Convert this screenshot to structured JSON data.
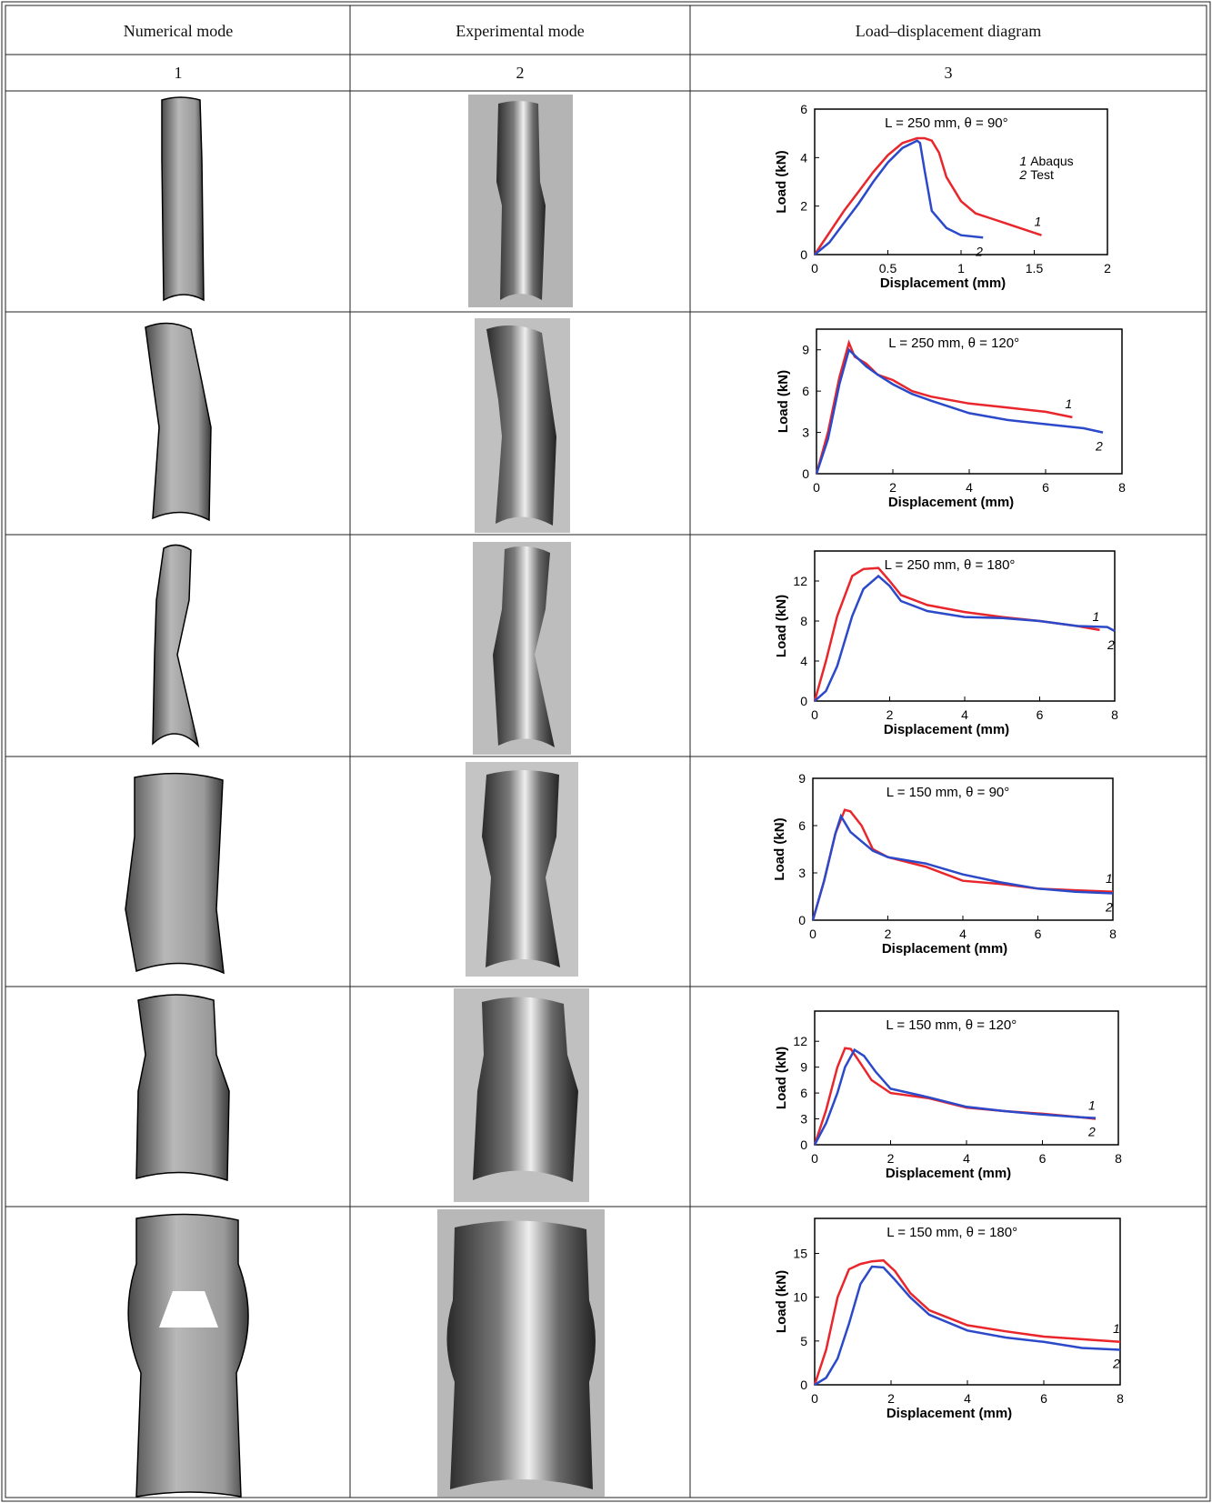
{
  "table": {
    "header": [
      "Numerical mode",
      "Experimental mode",
      "Load–displacement diagram"
    ],
    "column_numbers": [
      "1",
      "2",
      "3"
    ]
  },
  "chart_data": [
    {
      "type": "line",
      "title": "L = 250 mm, θ = 90°",
      "xlabel": "Displacement (mm)",
      "ylabel": "Load (kN)",
      "xlim": [
        0,
        2
      ],
      "ylim": [
        0,
        6
      ],
      "xticks": [
        0,
        0.5,
        1,
        1.5,
        2
      ],
      "yticks": [
        0,
        2,
        4,
        6
      ],
      "legend": [
        {
          "label": "1",
          "text": "Abaqus"
        },
        {
          "label": "2",
          "text": "Test"
        }
      ],
      "series": [
        {
          "label": "1",
          "color": "#e8262b",
          "x": [
            0,
            0.1,
            0.2,
            0.3,
            0.4,
            0.5,
            0.6,
            0.7,
            0.75,
            0.8,
            0.85,
            0.9,
            1.0,
            1.1,
            1.2,
            1.3,
            1.4,
            1.55
          ],
          "values": [
            0,
            0.9,
            1.8,
            2.6,
            3.4,
            4.1,
            4.6,
            4.8,
            4.8,
            4.7,
            4.2,
            3.2,
            2.2,
            1.7,
            1.5,
            1.3,
            1.1,
            0.8
          ]
        },
        {
          "label": "2",
          "color": "#2b49c8",
          "x": [
            0,
            0.1,
            0.2,
            0.3,
            0.4,
            0.5,
            0.6,
            0.7,
            0.72,
            0.75,
            0.8,
            0.9,
            1.0,
            1.15
          ],
          "values": [
            0,
            0.5,
            1.3,
            2.1,
            3.0,
            3.8,
            4.4,
            4.7,
            4.6,
            3.5,
            1.8,
            1.1,
            0.8,
            0.7
          ]
        }
      ]
    },
    {
      "type": "line",
      "title": "L = 250 mm, θ = 120°",
      "xlabel": "Displacement (mm)",
      "ylabel": "Load (kN)",
      "xlim": [
        0,
        8
      ],
      "ylim": [
        0,
        10.5
      ],
      "xticks": [
        0,
        2,
        4,
        6,
        8
      ],
      "yticks": [
        0,
        3,
        6,
        9
      ],
      "series": [
        {
          "label": "1",
          "color": "#e8262b",
          "x": [
            0,
            0.3,
            0.6,
            0.85,
            1.0,
            1.3,
            1.6,
            2,
            2.5,
            3,
            4,
            5,
            6,
            6.7
          ],
          "values": [
            0,
            3,
            7,
            9.5,
            8.5,
            8,
            7.2,
            6.8,
            6,
            5.6,
            5.1,
            4.8,
            4.5,
            4.1
          ]
        },
        {
          "label": "2",
          "color": "#2b49c8",
          "x": [
            0,
            0.3,
            0.6,
            0.85,
            1.0,
            1.3,
            1.6,
            2,
            2.5,
            3,
            4,
            5,
            6,
            7,
            7.5
          ],
          "values": [
            0,
            2.5,
            6.5,
            9,
            8.6,
            7.8,
            7.2,
            6.5,
            5.8,
            5.3,
            4.4,
            3.9,
            3.6,
            3.3,
            3.0
          ]
        }
      ]
    },
    {
      "type": "line",
      "title": "L = 250 mm, θ = 180°",
      "xlabel": "Displacement (mm)",
      "ylabel": "Load (kN)",
      "xlim": [
        0,
        8
      ],
      "ylim": [
        0,
        15
      ],
      "xticks": [
        0,
        2,
        4,
        6,
        8
      ],
      "yticks": [
        0,
        4,
        8,
        12
      ],
      "series": [
        {
          "label": "1",
          "color": "#e8262b",
          "x": [
            0,
            0.3,
            0.6,
            1,
            1.3,
            1.7,
            2,
            2.3,
            3,
            4,
            5,
            6,
            7,
            7.6
          ],
          "values": [
            0,
            4,
            8.5,
            12.5,
            13.2,
            13.3,
            12,
            10.6,
            9.6,
            8.9,
            8.4,
            8.0,
            7.5,
            7.1
          ]
        },
        {
          "label": "2",
          "color": "#2b49c8",
          "x": [
            0,
            0.3,
            0.6,
            1,
            1.3,
            1.7,
            2,
            2.3,
            3,
            4,
            5,
            6,
            7,
            7.8,
            8
          ],
          "values": [
            0,
            1,
            3.5,
            8.5,
            11.2,
            12.5,
            11.5,
            10,
            9.0,
            8.4,
            8.3,
            8.0,
            7.5,
            7.4,
            7.0
          ]
        }
      ]
    },
    {
      "type": "line",
      "title": "L = 150 mm, θ = 90°",
      "xlabel": "Displacement (mm)",
      "ylabel": "Load (kN)",
      "xlim": [
        0,
        8
      ],
      "ylim": [
        0,
        9
      ],
      "xticks": [
        0,
        2,
        4,
        6,
        8
      ],
      "yticks": [
        0,
        3,
        6,
        9
      ],
      "series": [
        {
          "label": "1",
          "color": "#e8262b",
          "x": [
            0,
            0.3,
            0.6,
            0.85,
            1.0,
            1.3,
            1.6,
            2,
            3,
            4,
            5,
            6,
            7,
            8
          ],
          "values": [
            0,
            2.5,
            5.5,
            7.0,
            6.9,
            6.0,
            4.5,
            4.0,
            3.4,
            2.5,
            2.3,
            2.0,
            1.9,
            1.8
          ]
        },
        {
          "label": "2",
          "color": "#2b49c8",
          "x": [
            0,
            0.3,
            0.6,
            0.75,
            1,
            1.3,
            1.6,
            2,
            3,
            4,
            5,
            6,
            7,
            8
          ],
          "values": [
            0,
            2.5,
            5.5,
            6.6,
            5.6,
            5.0,
            4.4,
            4.0,
            3.6,
            2.9,
            2.4,
            2.0,
            1.8,
            1.7
          ]
        }
      ]
    },
    {
      "type": "line",
      "title": "L = 150 mm, θ = 120°",
      "xlabel": "Displacement (mm)",
      "ylabel": "Load (kN)",
      "xlim": [
        0,
        8
      ],
      "ylim": [
        0,
        15.5
      ],
      "xticks": [
        0,
        2,
        4,
        6,
        8
      ],
      "yticks": [
        0,
        3,
        6,
        9,
        12
      ],
      "series": [
        {
          "label": "1",
          "color": "#e8262b",
          "x": [
            0,
            0.3,
            0.6,
            0.8,
            0.95,
            1.2,
            1.5,
            2,
            3,
            4,
            5,
            6,
            7,
            7.4
          ],
          "values": [
            0,
            4,
            9,
            11.2,
            11.1,
            9.5,
            7.5,
            6,
            5.4,
            4.3,
            3.9,
            3.6,
            3.2,
            3.0
          ]
        },
        {
          "label": "2",
          "color": "#2b49c8",
          "x": [
            0,
            0.3,
            0.6,
            0.8,
            1.05,
            1.3,
            1.6,
            2,
            3,
            4,
            5,
            6,
            7,
            7.4
          ],
          "values": [
            0,
            2.5,
            6,
            9,
            11,
            10.3,
            8.5,
            6.5,
            5.5,
            4.4,
            3.9,
            3.5,
            3.2,
            3.1
          ]
        }
      ]
    },
    {
      "type": "line",
      "title": "L = 150 mm, θ = 180°",
      "xlabel": "Displacement (mm)",
      "ylabel": "Load (kN)",
      "xlim": [
        0,
        8
      ],
      "ylim": [
        0,
        19
      ],
      "xticks": [
        0,
        2,
        4,
        6,
        8
      ],
      "yticks": [
        0,
        5,
        10,
        15
      ],
      "series": [
        {
          "label": "1",
          "color": "#e8262b",
          "x": [
            0,
            0.3,
            0.6,
            0.9,
            1.2,
            1.5,
            1.8,
            2.1,
            2.5,
            3,
            4,
            5,
            6,
            7,
            8
          ],
          "values": [
            0,
            4,
            10,
            13.2,
            13.8,
            14.1,
            14.2,
            13,
            10.5,
            8.5,
            6.8,
            6.1,
            5.5,
            5.2,
            4.9
          ]
        },
        {
          "label": "2",
          "color": "#2b49c8",
          "x": [
            0,
            0.3,
            0.6,
            0.9,
            1.2,
            1.5,
            1.8,
            2.1,
            2.5,
            3,
            4,
            5,
            6,
            7,
            8
          ],
          "values": [
            0,
            0.8,
            3,
            7,
            11.5,
            13.5,
            13.4,
            12,
            10,
            8,
            6.2,
            5.4,
            4.9,
            4.2,
            4.0
          ]
        }
      ]
    }
  ]
}
